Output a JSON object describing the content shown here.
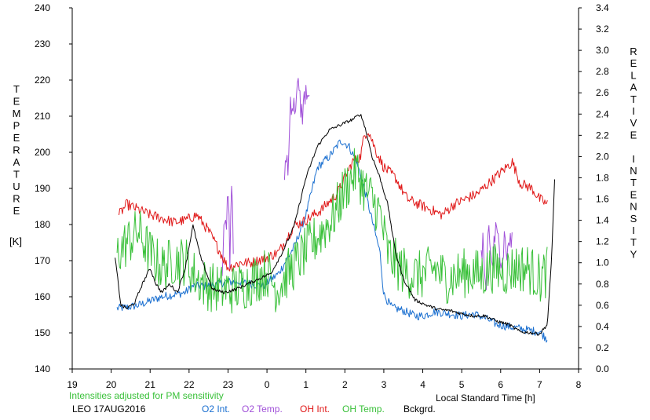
{
  "chart_data": {
    "type": "line",
    "left_axis": {
      "label_letters": [
        "T",
        "E",
        "M",
        "P",
        "E",
        "R",
        "A",
        "T",
        "U",
        "R",
        "E"
      ],
      "unit": "[K]",
      "ylim": [
        140,
        240
      ],
      "ticks": [
        "140",
        "150",
        "160",
        "170",
        "180",
        "190",
        "200",
        "210",
        "220",
        "230",
        "240"
      ]
    },
    "right_axis": {
      "label_letters": [
        "R",
        "E",
        "L",
        "A",
        "T",
        "I",
        "V",
        "E",
        "",
        "I",
        "N",
        "T",
        "E",
        "N",
        "S",
        "I",
        "T",
        "Y"
      ],
      "ylim": [
        0.0,
        3.4
      ],
      "ticks": [
        "0.0",
        "0.2",
        "0.4",
        "0.6",
        "0.8",
        "1.0",
        "1.2",
        "1.4",
        "1.6",
        "1.8",
        "2.0",
        "2.2",
        "2.4",
        "2.6",
        "2.8",
        "3.0",
        "3.2",
        "3.4"
      ]
    },
    "x_axis": {
      "label": "Local Standard Time [h]",
      "hour_range": [
        19,
        32
      ],
      "ticks": [
        "19",
        "20",
        "21",
        "22",
        "23",
        "0",
        "1",
        "2",
        "3",
        "4",
        "5",
        "6",
        "7",
        "8"
      ]
    },
    "note": "Intensities adjusted for PM sensitivity",
    "station": "LEO 17AUG2016",
    "legend": [
      "O2 Int.",
      "O2 Temp.",
      "OH Int.",
      "OH Temp.",
      "Bckgrd."
    ],
    "series": [
      {
        "name": "O2 Int.",
        "color": "#1a6fd0",
        "axis": "right",
        "noise": 0.04,
        "x": [
          20.15,
          20.4,
          20.7,
          21.0,
          21.3,
          21.6,
          21.9,
          22.1,
          22.4,
          22.7,
          23.0,
          23.3,
          23.6,
          23.9,
          24.3,
          24.7,
          25.0,
          25.3,
          25.6,
          25.9,
          26.1,
          26.3,
          26.5,
          26.7,
          26.9,
          27.0,
          27.2,
          27.5,
          27.8,
          28.0,
          28.3,
          28.7,
          29.0,
          29.3,
          29.6,
          29.9,
          30.2,
          30.5,
          30.8,
          31.0,
          31.2
        ],
        "y": [
          0.57,
          0.58,
          0.6,
          0.64,
          0.68,
          0.7,
          0.72,
          0.78,
          0.78,
          0.8,
          0.82,
          0.82,
          0.8,
          0.78,
          0.9,
          1.15,
          1.45,
          1.9,
          2.0,
          2.15,
          2.1,
          1.95,
          1.7,
          1.4,
          1.1,
          0.7,
          0.58,
          0.55,
          0.5,
          0.5,
          0.54,
          0.52,
          0.5,
          0.52,
          0.48,
          0.42,
          0.4,
          0.38,
          0.36,
          0.35,
          0.28
        ]
      },
      {
        "name": "O2 Temp.",
        "color": "#a050d8",
        "axis": "left",
        "noise": 4,
        "x": [
          22.85,
          22.9,
          22.95,
          23.0,
          23.05,
          23.1,
          23.15,
          24.45,
          24.5,
          24.55,
          24.6,
          24.7,
          24.8,
          24.9,
          25.0,
          25.05,
          25.1,
          29.5,
          29.55,
          29.6,
          29.7,
          29.8,
          29.9,
          30.0,
          30.1,
          30.2,
          30.3
        ],
        "y": [
          167,
          185,
          175,
          190,
          170,
          195,
          165,
          190,
          200,
          195,
          215,
          212,
          218,
          210,
          218,
          212,
          220,
          170,
          175,
          160,
          178,
          170,
          182,
          168,
          175,
          172,
          180
        ]
      },
      {
        "name": "OH Int.",
        "color": "#e01818",
        "axis": "right",
        "noise": 0.05,
        "x": [
          20.2,
          20.4,
          20.7,
          21.0,
          21.3,
          21.6,
          21.9,
          22.2,
          22.5,
          22.8,
          23.0,
          23.3,
          23.6,
          24.0,
          24.3,
          24.7,
          25.0,
          25.4,
          25.8,
          26.0,
          26.2,
          26.4,
          26.5,
          26.6,
          26.8,
          27.0,
          27.3,
          27.6,
          27.9,
          28.2,
          28.5,
          28.8,
          29.1,
          29.4,
          29.7,
          30.0,
          30.3,
          30.5,
          30.8,
          31.0,
          31.2
        ],
        "y": [
          1.45,
          1.55,
          1.5,
          1.45,
          1.42,
          1.38,
          1.4,
          1.45,
          1.3,
          1.1,
          0.95,
          1.0,
          1.0,
          1.05,
          1.1,
          1.35,
          1.4,
          1.5,
          1.65,
          1.8,
          1.95,
          2.0,
          2.2,
          2.25,
          2.05,
          1.9,
          1.8,
          1.6,
          1.55,
          1.5,
          1.45,
          1.55,
          1.6,
          1.65,
          1.75,
          1.85,
          1.95,
          1.75,
          1.7,
          1.6,
          1.55
        ]
      },
      {
        "name": "OH Temp.",
        "color": "#38c038",
        "axis": "left",
        "noise": 7,
        "x": [
          20.15,
          20.4,
          20.7,
          21.0,
          21.3,
          21.6,
          21.9,
          22.2,
          22.5,
          22.8,
          23.1,
          23.4,
          23.7,
          24.0,
          24.25,
          24.5,
          24.8,
          25.1,
          25.4,
          25.7,
          26.0,
          26.3,
          26.5,
          26.7,
          26.9,
          27.1,
          27.4,
          27.7,
          28.0,
          28.3,
          28.6,
          28.9,
          29.2,
          29.5,
          29.8,
          30.1,
          30.4,
          30.7,
          31.0,
          31.2
        ],
        "y": [
          172,
          175,
          178,
          172,
          168,
          170,
          170,
          165,
          163,
          162,
          162,
          163,
          165,
          167,
          162,
          166,
          170,
          174,
          178,
          182,
          190,
          195,
          190,
          187,
          183,
          172,
          168,
          166,
          166,
          168,
          165,
          166,
          167,
          166,
          168,
          167,
          168,
          168,
          165,
          167
        ]
      },
      {
        "name": "Bckgrd.",
        "color": "#000000",
        "axis": "right",
        "noise": 0.015,
        "x": [
          20.1,
          20.25,
          20.4,
          20.6,
          20.8,
          21.0,
          21.15,
          21.3,
          21.5,
          21.7,
          21.9,
          22.1,
          22.3,
          22.6,
          22.9,
          23.2,
          23.5,
          23.8,
          24.1,
          24.4,
          24.7,
          25.0,
          25.3,
          25.6,
          25.9,
          26.2,
          26.4,
          26.5,
          26.7,
          26.9,
          27.1,
          27.3,
          27.5,
          27.8,
          28.1,
          28.4,
          28.7,
          29.0,
          29.3,
          29.6,
          29.9,
          30.2,
          30.5,
          30.8,
          31.0,
          31.2,
          31.3,
          31.4
        ],
        "y": [
          1.05,
          0.6,
          0.57,
          0.62,
          0.8,
          0.95,
          0.8,
          0.72,
          0.8,
          0.72,
          0.95,
          1.35,
          1.05,
          0.75,
          0.72,
          0.75,
          0.8,
          0.85,
          0.9,
          1.1,
          1.35,
          1.8,
          2.1,
          2.25,
          2.3,
          2.35,
          2.4,
          2.3,
          2.0,
          1.8,
          1.55,
          1.1,
          0.85,
          0.65,
          0.6,
          0.56,
          0.55,
          0.52,
          0.5,
          0.5,
          0.45,
          0.42,
          0.35,
          0.34,
          0.33,
          0.42,
          1.0,
          1.9
        ]
      }
    ]
  }
}
